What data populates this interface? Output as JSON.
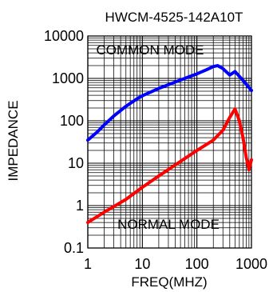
{
  "chart_data": {
    "type": "line",
    "title": "HWCM-4525-142A10T",
    "xlabel": "FREQ(MHZ)",
    "ylabel": "IMPEDANCE",
    "x_scale": "log",
    "y_scale": "log",
    "xlim": [
      1,
      1000
    ],
    "ylim": [
      0.1,
      10000
    ],
    "grid": true,
    "x_ticks": [
      "1",
      "10",
      "100",
      "1000"
    ],
    "y_ticks": [
      "0.1",
      "1",
      "10",
      "100",
      "1000",
      "10000"
    ],
    "annotations": [
      "COMMON MODE",
      "NORMAL MODE"
    ],
    "colors": {
      "common_mode": "#0000ff",
      "normal_mode": "#ff0000",
      "grid": "#000000"
    },
    "series": [
      {
        "points": [
          [
            1,
            35
          ],
          [
            1.5,
            55
          ],
          [
            2,
            80
          ],
          [
            3,
            130
          ],
          [
            5,
            220
          ],
          [
            8,
            330
          ],
          [
            10,
            390
          ],
          [
            20,
            580
          ],
          [
            40,
            820
          ],
          [
            70,
            1080
          ],
          [
            100,
            1280
          ],
          [
            150,
            1600
          ],
          [
            200,
            1900
          ],
          [
            240,
            2000
          ],
          [
            300,
            1700
          ],
          [
            400,
            1200
          ],
          [
            500,
            1450
          ],
          [
            700,
            900
          ],
          [
            1000,
            520
          ]
        ]
      },
      {
        "points": [
          [
            1,
            0.4
          ],
          [
            2,
            0.7
          ],
          [
            5,
            1.4
          ],
          [
            10,
            2.7
          ],
          [
            20,
            5
          ],
          [
            50,
            11
          ],
          [
            100,
            20
          ],
          [
            200,
            35
          ],
          [
            300,
            60
          ],
          [
            400,
            120
          ],
          [
            500,
            190
          ],
          [
            600,
            100
          ],
          [
            700,
            40
          ],
          [
            800,
            14
          ],
          [
            900,
            7
          ],
          [
            1000,
            12
          ]
        ]
      }
    ]
  }
}
